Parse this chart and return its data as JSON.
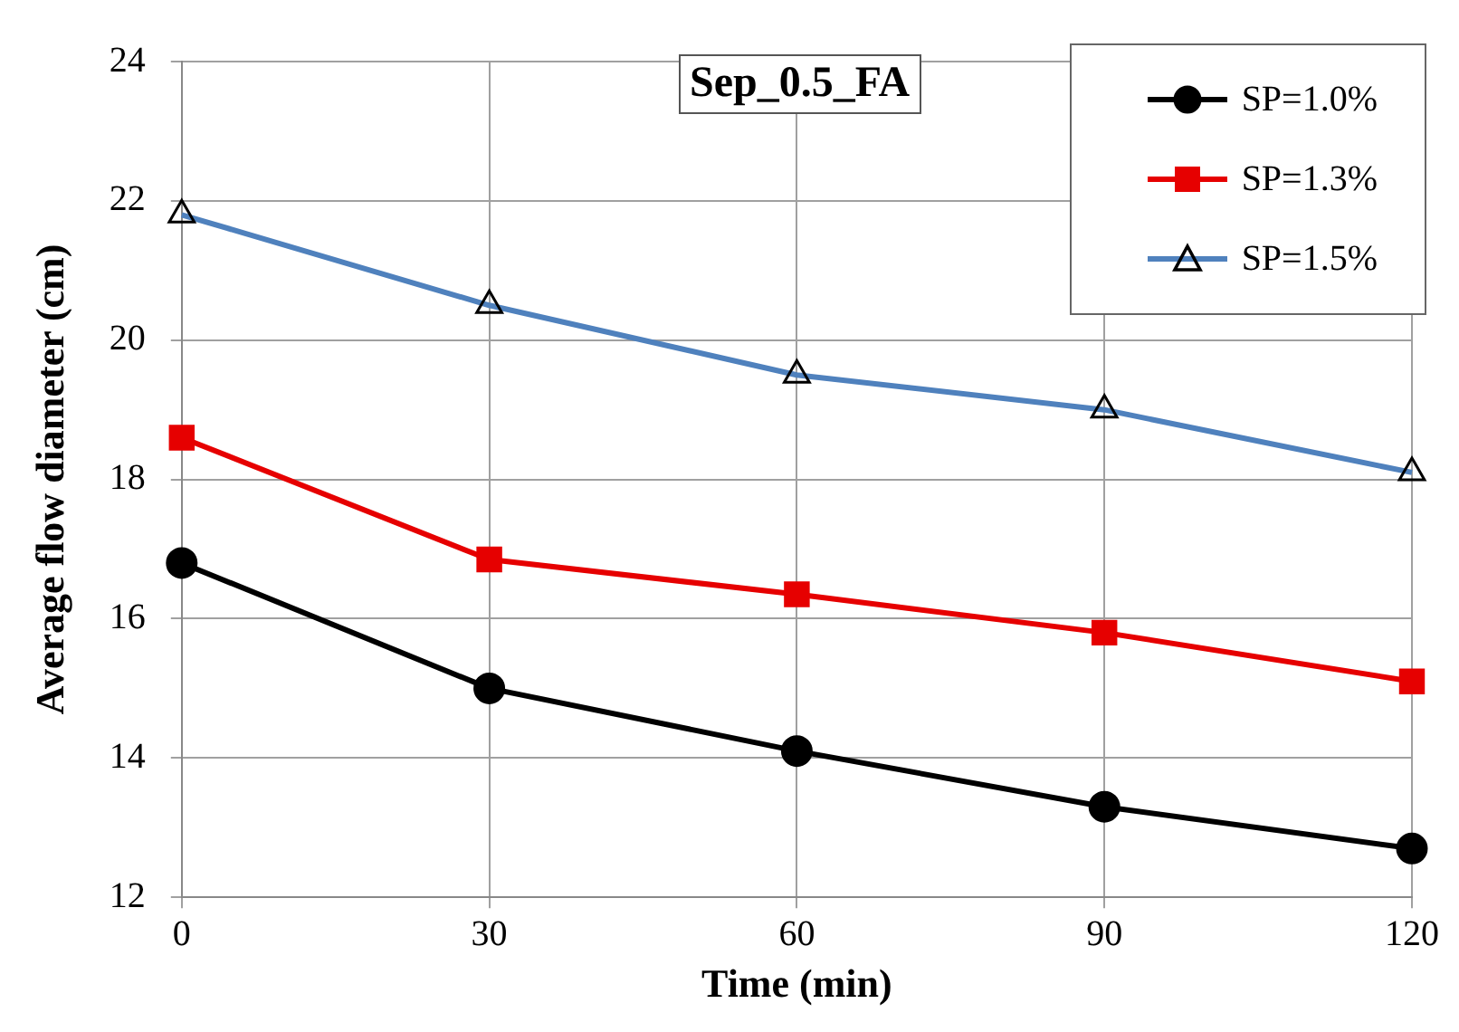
{
  "chart_data": {
    "type": "line",
    "title": "Sep_0.5_FA",
    "xlabel": "Time (min)",
    "ylabel": "Average flow diameter (cm)",
    "x": [
      0,
      30,
      60,
      90,
      120
    ],
    "series": [
      {
        "name": "SP=1.0%",
        "color": "#000000",
        "marker": "circle",
        "values": [
          16.8,
          15.0,
          14.1,
          13.3,
          12.7
        ]
      },
      {
        "name": "SP=1.3%",
        "color": "#e60000",
        "marker": "square",
        "values": [
          18.6,
          16.85,
          16.35,
          15.8,
          15.1
        ]
      },
      {
        "name": "SP=1.5%",
        "color": "#4f81bd",
        "marker": "triangle",
        "values": [
          21.8,
          20.5,
          19.5,
          19.0,
          18.1
        ]
      }
    ],
    "xlim": [
      0,
      120
    ],
    "xticks": [
      0,
      30,
      60,
      90,
      120
    ],
    "ylim": [
      12,
      24
    ],
    "yticks": [
      12,
      14,
      16,
      18,
      20,
      22,
      24
    ],
    "grid": true,
    "legend": "top right",
    "line_style": "solid"
  }
}
